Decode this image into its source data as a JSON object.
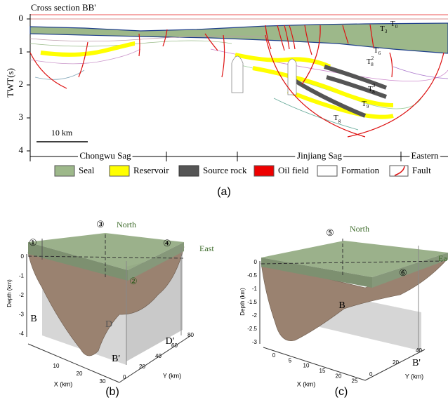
{
  "panel_a": {
    "title": "Cross section BB'",
    "y_axis_label": "TWT(s)",
    "y_ticks": [
      "0",
      "1",
      "2",
      "3",
      "4"
    ],
    "scale_bar": "10 km",
    "horizons": [
      {
        "base": "T",
        "sub": "0"
      },
      {
        "base": "T",
        "sub": "3"
      },
      {
        "base": "T",
        "sub": "6"
      },
      {
        "base": "T",
        "sub": "8",
        "sup": "2"
      },
      {
        "base": "T",
        "sub": "8",
        "sup": "3"
      },
      {
        "base": "T",
        "sub": "9"
      },
      {
        "base": "T",
        "sub": "g"
      }
    ],
    "regions": [
      "Chongwu Sag",
      "Jinjiang Sag",
      "Eastern"
    ],
    "legend": [
      "Seal",
      "Reservoir",
      "Source rock",
      "Oil field",
      "Formation",
      "Fault"
    ],
    "caption": "(a)"
  },
  "panel_b": {
    "markers": [
      "①",
      "②",
      "③",
      "④"
    ],
    "directions": [
      "North",
      "East"
    ],
    "section_labels": [
      "B",
      "B'",
      "D",
      "D'"
    ],
    "depth_label": "Depth (km)",
    "depth_ticks": [
      "0",
      "-1",
      "-2",
      "-3",
      "-4"
    ],
    "x_label": "X (km)",
    "x_ticks": [
      "10",
      "20",
      "30"
    ],
    "y_label": "Y (km)",
    "y_ticks": [
      "0",
      "20",
      "40",
      "60",
      "80"
    ],
    "caption": "(b)"
  },
  "panel_c": {
    "markers": [
      "⑤",
      "⑥"
    ],
    "directions": [
      "North",
      "Ea"
    ],
    "section_labels": [
      "B",
      "B'"
    ],
    "depth_label": "Depth (km)",
    "depth_ticks": [
      "0",
      "-0.5",
      "-1",
      "-1.5",
      "-2",
      "-2.5",
      "-3"
    ],
    "x_label": "X (km)",
    "x_ticks": [
      "0",
      "5",
      "10",
      "15",
      "20",
      "25"
    ],
    "y_label": "Y (km)",
    "y_ticks": [
      "0",
      "20",
      "40"
    ],
    "caption": "(c)"
  }
}
